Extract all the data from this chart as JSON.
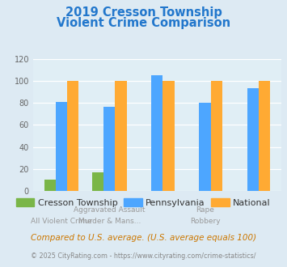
{
  "title_line1": "2019 Cresson Township",
  "title_line2": "Violent Crime Comparison",
  "title_color": "#2277cc",
  "groups": [
    "All Violent Crime",
    "Aggravated Assault",
    "Murder & Mans...",
    "Rape",
    "Robbery"
  ],
  "top_xlabels": [
    "",
    "Aggravated Assault",
    "",
    "Rape",
    ""
  ],
  "bot_xlabels": [
    "All Violent Crime",
    "Murder & Mans...",
    "",
    "Robbery",
    ""
  ],
  "cresson": [
    10,
    17,
    0,
    0,
    0
  ],
  "pennsylvania": [
    81,
    76,
    105,
    80,
    93
  ],
  "national": [
    100,
    100,
    100,
    100,
    100
  ],
  "color_cresson": "#7ab648",
  "color_pennsylvania": "#4da6ff",
  "color_national": "#ffaa33",
  "ylim": [
    0,
    120
  ],
  "yticks": [
    0,
    20,
    40,
    60,
    80,
    100,
    120
  ],
  "legend_labels": [
    "Cresson Township",
    "Pennsylvania",
    "National"
  ],
  "footnote1": "Compared to U.S. average. (U.S. average equals 100)",
  "footnote2": "© 2025 CityRating.com - https://www.cityrating.com/crime-statistics/",
  "title_bg": "#ffffff",
  "plot_bg_color": "#e0eef5",
  "fig_bg_color": "#ddeaf3"
}
